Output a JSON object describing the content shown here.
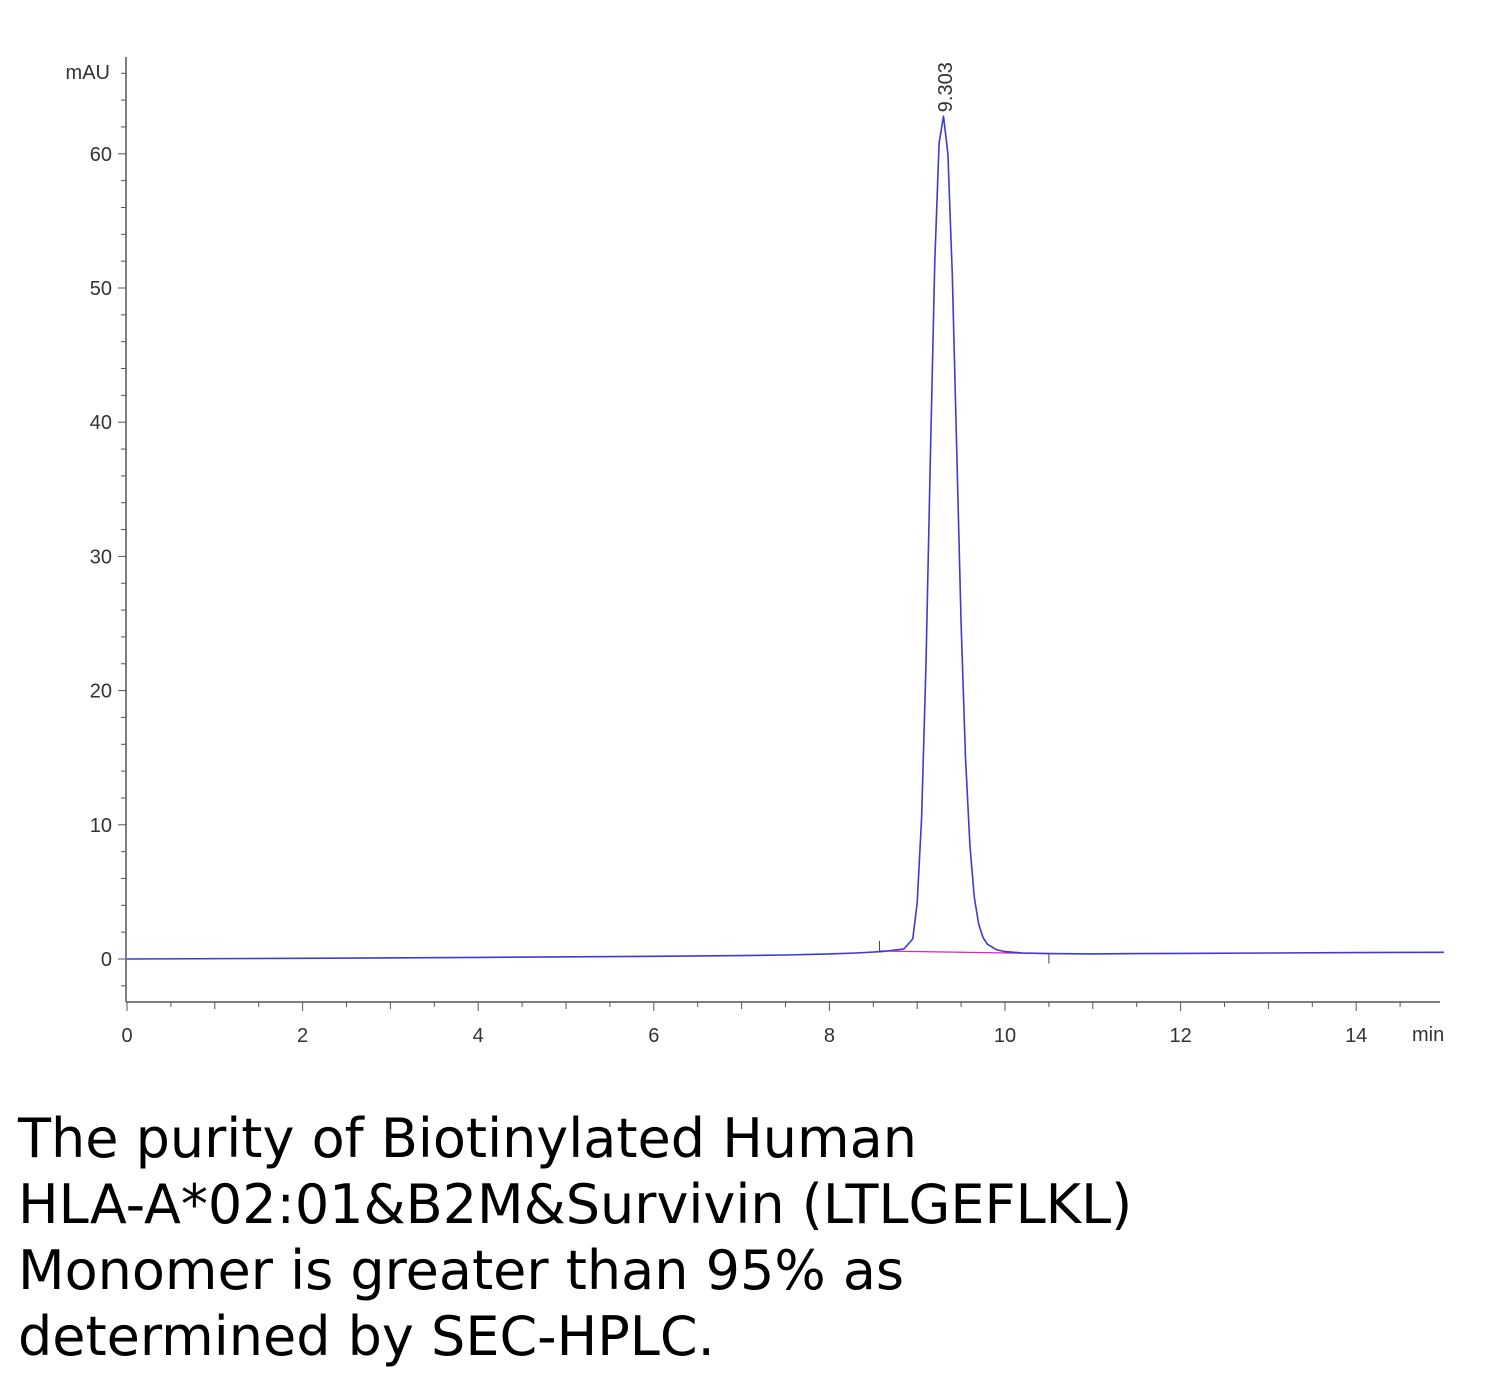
{
  "chart_data": {
    "type": "line",
    "y_unit_label": "mAU",
    "x_unit_label": "min",
    "xlim": [
      0,
      15
    ],
    "ylim": [
      -3.2,
      67
    ],
    "x_ticks": [
      0,
      2,
      4,
      6,
      8,
      10,
      12,
      14
    ],
    "y_ticks": [
      0,
      10,
      20,
      30,
      40,
      50,
      60
    ],
    "grid": false,
    "legend": "none",
    "peak_label": "9.303",
    "peak": {
      "x": 9.303,
      "y": 62.8
    },
    "integration_baseline": {
      "x": [
        8.57,
        10.5
      ],
      "y": [
        0.6,
        0.4
      ]
    },
    "series": [
      {
        "color": "#3b3bd6",
        "x": [
          0,
          2,
          4,
          6,
          7,
          7.5,
          8,
          8.3,
          8.6,
          8.85,
          8.95,
          9.0,
          9.05,
          9.1,
          9.15,
          9.2,
          9.25,
          9.3,
          9.35,
          9.4,
          9.45,
          9.5,
          9.55,
          9.6,
          9.65,
          9.7,
          9.75,
          9.8,
          9.9,
          10.0,
          10.2,
          10.5,
          11,
          11.5,
          12,
          13,
          14,
          15
        ],
        "y": [
          0.0,
          0.05,
          0.12,
          0.2,
          0.25,
          0.3,
          0.38,
          0.45,
          0.55,
          0.75,
          1.5,
          4.2,
          10.5,
          22.0,
          37.5,
          52.0,
          60.8,
          62.8,
          60.0,
          51.0,
          38.0,
          25.0,
          15.0,
          8.5,
          4.6,
          2.6,
          1.6,
          1.1,
          0.7,
          0.55,
          0.45,
          0.4,
          0.38,
          0.4,
          0.42,
          0.45,
          0.48,
          0.5
        ]
      }
    ]
  },
  "caption_lines": [
    "The purity of Biotinylated Human",
    "HLA-A*02:01&B2M&Survivin (LTLGEFLKL)",
    "Monomer is greater than 95% as",
    "determined by SEC-HPLC."
  ]
}
